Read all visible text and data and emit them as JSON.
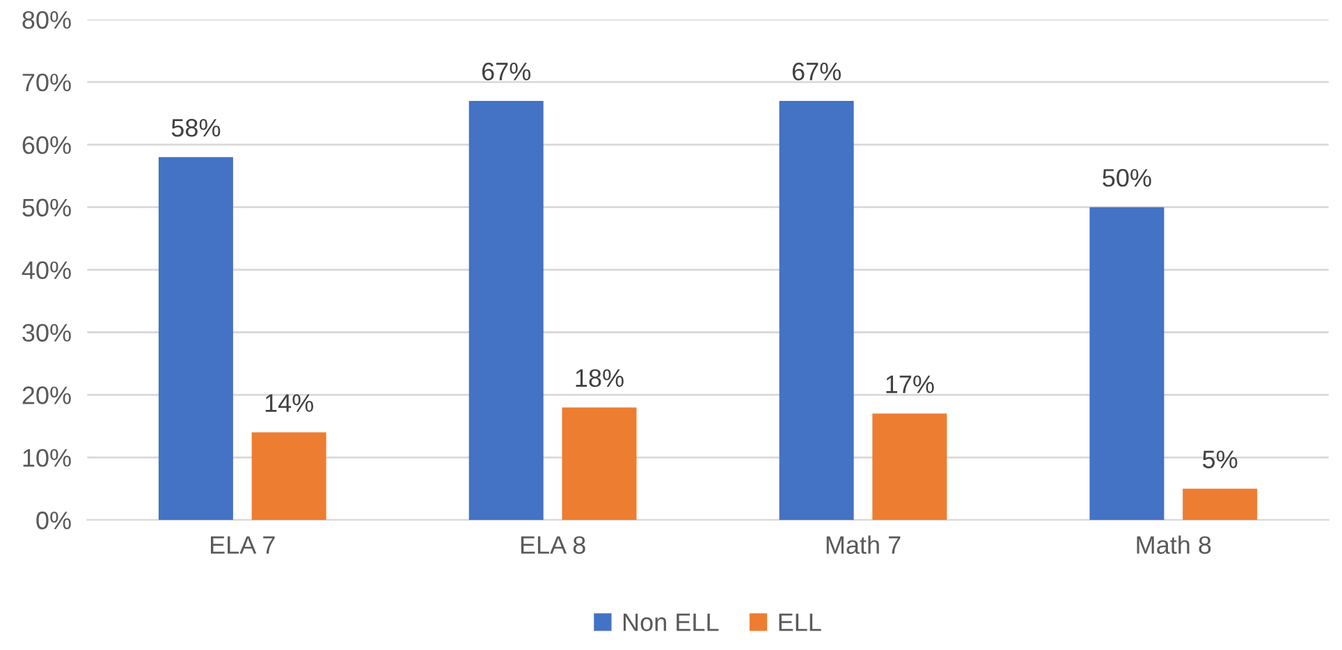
{
  "chart_data": {
    "type": "bar",
    "categories": [
      "ELA 7",
      "ELA 8",
      "Math 7",
      "Math 8"
    ],
    "series": [
      {
        "name": "Non ELL",
        "color": "#4472c4",
        "values": [
          58,
          67,
          67,
          50
        ],
        "value_labels": [
          "58%",
          "67%",
          "67%",
          "50%"
        ]
      },
      {
        "name": "ELL",
        "color": "#ed7d31",
        "values": [
          14,
          18,
          17,
          5
        ],
        "value_labels": [
          "14%",
          "18%",
          "17%",
          "5%"
        ]
      }
    ],
    "ylim": [
      0,
      80
    ],
    "yticks": [
      {
        "value": 0,
        "label": "0%"
      },
      {
        "value": 10,
        "label": "10%"
      },
      {
        "value": 20,
        "label": "20%"
      },
      {
        "value": 30,
        "label": "30%"
      },
      {
        "value": 40,
        "label": "40%"
      },
      {
        "value": 50,
        "label": "50%"
      },
      {
        "value": 60,
        "label": "60%"
      },
      {
        "value": 70,
        "label": "70%"
      },
      {
        "value": 80,
        "label": "80%"
      }
    ],
    "grid": "y",
    "legend": "bottom"
  }
}
